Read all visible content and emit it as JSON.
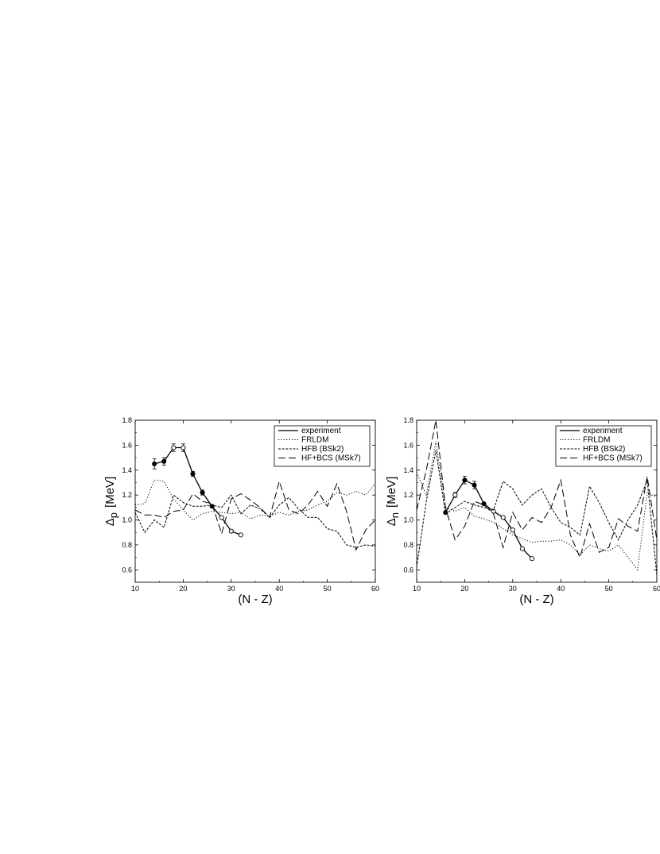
{
  "chart_data": [
    {
      "type": "line",
      "xlabel": "(N - Z)",
      "ylabel_symbol": "Δ",
      "ylabel_subscript": "p",
      "ylabel_unit": "[MeV]",
      "xlim": [
        10,
        60
      ],
      "ylim": [
        0.5,
        1.8
      ],
      "xticks": [
        10,
        20,
        30,
        40,
        50,
        60
      ],
      "yticks": [
        0.6,
        0.8,
        1.0,
        1.2,
        1.4,
        1.6,
        1.8
      ],
      "ytick_labels": [
        "0.6",
        "0.8",
        "1.0",
        "1.2",
        "1.4",
        "1.6",
        "1.8"
      ],
      "legend_position": "top-right",
      "grid": false,
      "series": [
        {
          "name": "experiment",
          "style": "solid",
          "x": [
            14,
            16,
            18,
            20,
            22,
            24,
            26,
            28,
            30,
            32
          ],
          "y": [
            1.45,
            1.47,
            1.58,
            1.58,
            1.37,
            1.22,
            1.11,
            1.02,
            0.91,
            0.88
          ],
          "markers": [
            "filled",
            "filled",
            "open",
            "open",
            "filled",
            "filled",
            "filled",
            "open",
            "open",
            "open"
          ],
          "errors": [
            0.04,
            0.03,
            0.03,
            0.03,
            0.02,
            0.02,
            0.0,
            0.0,
            0.0,
            0.0
          ]
        },
        {
          "name": "FRLDM",
          "style": "dotted",
          "x": [
            10,
            12,
            14,
            16,
            18,
            20,
            22,
            24,
            26,
            28,
            30,
            32,
            34,
            36,
            38,
            40,
            42,
            44,
            46,
            48,
            50,
            52,
            54,
            56,
            58,
            60
          ],
          "y": [
            1.12,
            1.13,
            1.32,
            1.31,
            1.17,
            1.08,
            1.0,
            1.05,
            1.07,
            1.06,
            1.05,
            1.06,
            1.01,
            1.04,
            1.03,
            1.06,
            1.04,
            1.07,
            1.08,
            1.12,
            1.15,
            1.22,
            1.2,
            1.23,
            1.2,
            1.29
          ]
        },
        {
          "name": "HFB (BSk2)",
          "style": "short-dash",
          "x": [
            10,
            12,
            14,
            16,
            18,
            20,
            22,
            24,
            26,
            28,
            30,
            32,
            34,
            36,
            38,
            40,
            42,
            44,
            46,
            48,
            50,
            52,
            54,
            56,
            58,
            60
          ],
          "y": [
            1.06,
            0.9,
            1.0,
            0.94,
            1.2,
            1.14,
            1.11,
            1.11,
            1.12,
            1.1,
            1.2,
            1.05,
            1.12,
            1.09,
            1.02,
            1.12,
            1.18,
            1.09,
            1.02,
            1.02,
            0.93,
            0.91,
            0.8,
            0.78,
            0.8,
            0.79
          ]
        },
        {
          "name": "HF+BCS (MSk7)",
          "style": "dashed",
          "x": [
            10,
            12,
            14,
            16,
            18,
            20,
            22,
            24,
            26,
            28,
            30,
            32,
            34,
            36,
            38,
            40,
            42,
            44,
            46,
            48,
            50,
            52,
            54,
            56,
            58,
            60
          ],
          "y": [
            1.08,
            1.04,
            1.04,
            1.02,
            1.07,
            1.08,
            1.21,
            1.15,
            1.13,
            0.89,
            1.17,
            1.21,
            1.16,
            1.1,
            1.02,
            1.31,
            1.08,
            1.05,
            1.12,
            1.23,
            1.11,
            1.29,
            1.07,
            0.76,
            0.92,
            1.0
          ]
        }
      ]
    },
    {
      "type": "line",
      "xlabel": "(N - Z)",
      "ylabel_symbol": "Δ",
      "ylabel_subscript": "n",
      "ylabel_unit": "[MeV]",
      "xlim": [
        10,
        60
      ],
      "ylim": [
        0.5,
        1.8
      ],
      "xticks": [
        10,
        20,
        30,
        40,
        50,
        60
      ],
      "yticks": [
        0.6,
        0.8,
        1.0,
        1.2,
        1.4,
        1.6,
        1.8
      ],
      "ytick_labels": [
        "0.6",
        "0.8",
        "1.0",
        "1.2",
        "1.4",
        "1.6",
        "1.8"
      ],
      "legend_position": "top-right",
      "grid": false,
      "series": [
        {
          "name": "experiment",
          "style": "solid",
          "x": [
            16,
            18,
            20,
            22,
            24,
            26,
            28,
            30,
            32,
            34
          ],
          "y": [
            1.06,
            1.2,
            1.32,
            1.28,
            1.13,
            1.07,
            1.02,
            0.92,
            0.77,
            0.69
          ],
          "markers": [
            "filled",
            "open",
            "filled",
            "filled",
            "filled",
            "open",
            "open",
            "open",
            "open",
            "open"
          ],
          "errors": [
            0.0,
            0.02,
            0.03,
            0.03,
            0.0,
            0.0,
            0.0,
            0.0,
            0.0,
            0.0
          ]
        },
        {
          "name": "FRLDM",
          "style": "dotted",
          "x": [
            10,
            12,
            14,
            16,
            18,
            20,
            22,
            24,
            26,
            28,
            30,
            32,
            34,
            36,
            38,
            40,
            42,
            44,
            46,
            48,
            50,
            52,
            54,
            56,
            58,
            60
          ],
          "y": [
            1.38,
            1.2,
            1.63,
            1.1,
            1.07,
            1.1,
            1.03,
            1.01,
            0.98,
            0.93,
            0.88,
            0.85,
            0.82,
            0.83,
            0.83,
            0.84,
            0.8,
            0.72,
            0.8,
            0.77,
            0.75,
            0.8,
            0.7,
            0.6,
            1.22,
            1.18
          ]
        },
        {
          "name": "HFB (BSk2)",
          "style": "short-dash",
          "x": [
            10,
            12,
            14,
            16,
            18,
            20,
            22,
            24,
            26,
            28,
            30,
            32,
            34,
            36,
            38,
            40,
            42,
            44,
            46,
            48,
            50,
            52,
            54,
            56,
            58,
            60
          ],
          "y": [
            0.62,
            1.15,
            1.56,
            1.05,
            1.1,
            1.15,
            1.12,
            1.1,
            1.08,
            1.31,
            1.25,
            1.12,
            1.2,
            1.25,
            1.1,
            0.98,
            0.94,
            0.88,
            1.27,
            1.14,
            0.98,
            0.84,
            1.0,
            1.12,
            1.32,
            0.56
          ]
        },
        {
          "name": "HF+BCS (MSk7)",
          "style": "dashed",
          "x": [
            10,
            12,
            14,
            16,
            18,
            20,
            22,
            24,
            26,
            28,
            30,
            32,
            34,
            36,
            38,
            40,
            42,
            44,
            46,
            48,
            50,
            52,
            54,
            56,
            58,
            60
          ],
          "y": [
            1.08,
            1.4,
            1.8,
            1.1,
            0.84,
            0.95,
            1.15,
            1.12,
            1.05,
            0.78,
            1.06,
            0.92,
            1.02,
            0.98,
            1.1,
            1.32,
            0.88,
            0.7,
            0.97,
            0.74,
            0.78,
            1.01,
            0.95,
            0.91,
            1.35,
            0.84
          ]
        }
      ]
    }
  ]
}
